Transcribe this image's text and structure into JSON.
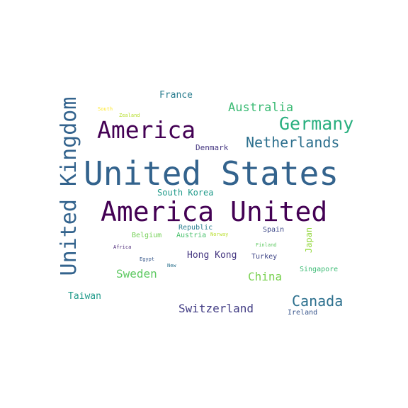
{
  "word_cloud": {
    "words": [
      {
        "text": "United States",
        "color": "#33638d"
      },
      {
        "text": "America United",
        "color": "#440154"
      },
      {
        "text": "United Kingdom",
        "color": "#33638d"
      },
      {
        "text": "America",
        "color": "#440154"
      },
      {
        "text": "Germany",
        "color": "#29af7f"
      },
      {
        "text": "Netherlands",
        "color": "#2d708e"
      },
      {
        "text": "Australia",
        "color": "#3cbb75"
      },
      {
        "text": "France",
        "color": "#287c8e"
      },
      {
        "text": "Denmark",
        "color": "#453781"
      },
      {
        "text": "South Korea",
        "color": "#1f9a8a"
      },
      {
        "text": "Canada",
        "color": "#2d708e"
      },
      {
        "text": "Switzerland",
        "color": "#433e85"
      },
      {
        "text": "Sweden",
        "color": "#5ec962"
      },
      {
        "text": "China",
        "color": "#7ad151"
      },
      {
        "text": "Hong Kong",
        "color": "#453781"
      },
      {
        "text": "Taiwan",
        "color": "#1f9a8a"
      },
      {
        "text": "Japan",
        "color": "#95d840"
      },
      {
        "text": "Singapore",
        "color": "#3cbb75"
      },
      {
        "text": "Ireland",
        "color": "#39568c"
      },
      {
        "text": "Turkey",
        "color": "#404688"
      },
      {
        "text": "Spain",
        "color": "#3e4989"
      },
      {
        "text": "Republic",
        "color": "#287d8e"
      },
      {
        "text": "Belgium",
        "color": "#73d056"
      },
      {
        "text": "Austria",
        "color": "#4ac16d"
      },
      {
        "text": "Norway",
        "color": "#b8de29"
      },
      {
        "text": "Finland",
        "color": "#5ec962"
      },
      {
        "text": "Africa",
        "color": "#482475"
      },
      {
        "text": "Egypt",
        "color": "#38588c"
      },
      {
        "text": "New",
        "color": "#2c728e"
      },
      {
        "text": "South",
        "color": "#fde725"
      },
      {
        "text": "Zealand",
        "color": "#b5de2b"
      }
    ]
  }
}
